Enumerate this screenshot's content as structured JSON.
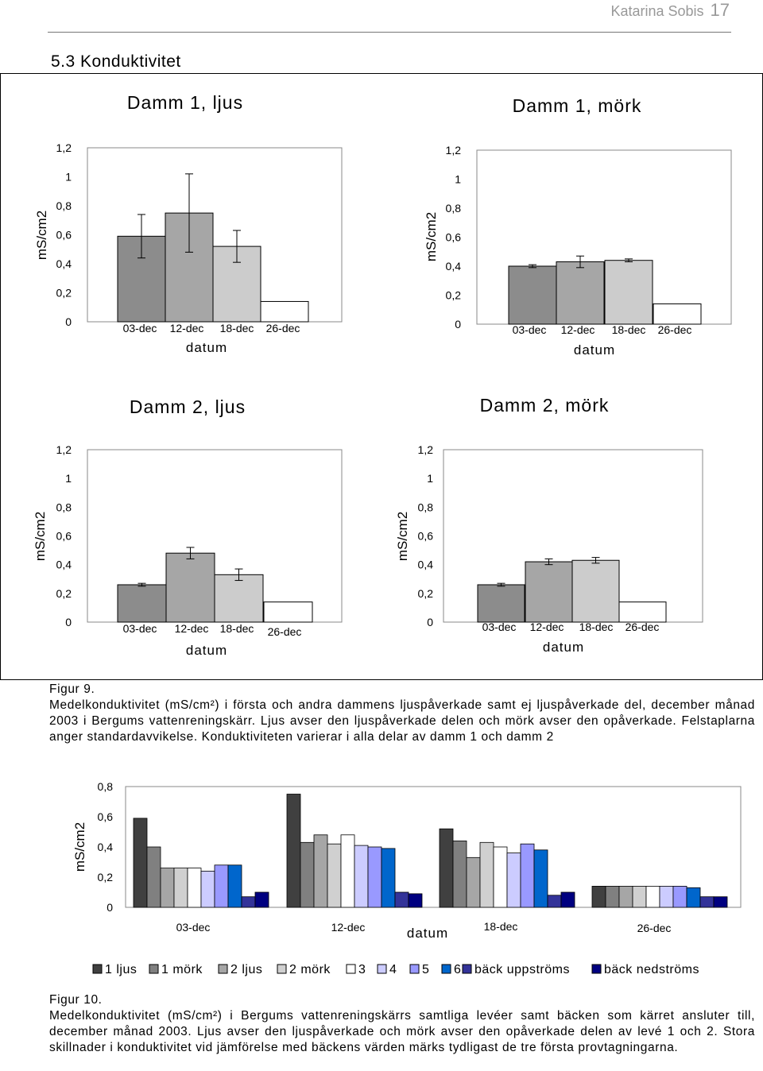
{
  "header": {
    "author": "Katarina Sobis",
    "page_number": "17"
  },
  "section_title": "5.3 Konduktivitet",
  "figure9": {
    "label": "Figur 9.",
    "caption": "Medelkonduktivitet (mS/cm²) i första och andra dammens ljuspåverkade samt ej ljuspåverkade del, december månad 2003 i Bergums vattenreningskärr. Ljus avser den ljuspåverkade delen och mörk avser den opåverkade. Felstaplarna anger standardavvikelse. Konduktiviteten varierar i alla delar av damm 1 och damm 2"
  },
  "figure10": {
    "label": "Figur 10.",
    "caption": "Medelkonduktivitet (mS/cm²) i Bergums vattenreningskärrs samtliga levéer samt bäcken som kärret ansluter till, december månad 2003. Ljus avser den ljuspåverkade och mörk avser den opåverkade delen av levé 1 och 2. Stora skillnader i konduktivitet vid jämförelse med bäckens värden märks tydligast de tre första provtagningarna."
  },
  "chart_data": [
    {
      "type": "bar",
      "title": "Damm 1, ljus",
      "xlabel": "datum",
      "ylabel": "mS/cm2",
      "ylim": [
        0,
        1.2
      ],
      "yticks": [
        "0",
        "0,2",
        "0,4",
        "0,6",
        "0,8",
        "1",
        "1,2"
      ],
      "categories": [
        "03-dec",
        "12-dec",
        "18-dec",
        "26-dec"
      ],
      "values": [
        0.59,
        0.75,
        0.52,
        0.14
      ],
      "errors": [
        0.15,
        0.27,
        0.11,
        0
      ],
      "colors": [
        "#8c8c8c",
        "#a6a6a6",
        "#cccccc",
        "#ffffff"
      ]
    },
    {
      "type": "bar",
      "title": "Damm 1, mörk",
      "xlabel": "datum",
      "ylabel": "mS/cm2",
      "ylim": [
        0,
        1.2
      ],
      "yticks": [
        "0",
        "0,2",
        "0,4",
        "0,6",
        "0,8",
        "1",
        "1,2"
      ],
      "categories": [
        "03-dec",
        "12-dec",
        "18-dec",
        "26-dec"
      ],
      "values": [
        0.4,
        0.43,
        0.44,
        0.14
      ],
      "errors": [
        0.01,
        0.04,
        0.01,
        0
      ],
      "colors": [
        "#8c8c8c",
        "#a6a6a6",
        "#cccccc",
        "#ffffff"
      ]
    },
    {
      "type": "bar",
      "title": "Damm 2, ljus",
      "xlabel": "datum",
      "ylabel": "mS/cm2",
      "ylim": [
        0,
        1.2
      ],
      "yticks": [
        "0",
        "0,2",
        "0,4",
        "0,6",
        "0,8",
        "1",
        "1,2"
      ],
      "categories": [
        "03-dec",
        "12-dec",
        "18-dec",
        "26-dec"
      ],
      "values": [
        0.26,
        0.48,
        0.33,
        0.14
      ],
      "errors": [
        0.01,
        0.04,
        0.04,
        0
      ],
      "colors": [
        "#8c8c8c",
        "#a6a6a6",
        "#cccccc",
        "#ffffff"
      ]
    },
    {
      "type": "bar",
      "title": "Damm 2, mörk",
      "xlabel": "datum",
      "ylabel": "mS/cm2",
      "ylim": [
        0,
        1.2
      ],
      "yticks": [
        "0",
        "0,2",
        "0,4",
        "0,6",
        "0,8",
        "1",
        "1,2"
      ],
      "categories": [
        "03-dec",
        "12-dec",
        "18-dec",
        "26-dec"
      ],
      "values": [
        0.26,
        0.42,
        0.43,
        0.14
      ],
      "errors": [
        0.01,
        0.02,
        0.02,
        0
      ],
      "colors": [
        "#8c8c8c",
        "#a6a6a6",
        "#cccccc",
        "#ffffff"
      ]
    },
    {
      "type": "bar",
      "title": "",
      "xlabel": "datum",
      "ylabel": "mS/cm2",
      "ylim": [
        0,
        0.8
      ],
      "yticks": [
        "0",
        "0,2",
        "0,4",
        "0,6",
        "0,8"
      ],
      "categories": [
        "03-dec",
        "12-dec",
        "18-dec",
        "26-dec"
      ],
      "series": [
        {
          "name": "1 ljus",
          "color": "#404040",
          "values": [
            0.59,
            0.75,
            0.52,
            0.14
          ]
        },
        {
          "name": "1 mörk",
          "color": "#808080",
          "values": [
            0.4,
            0.43,
            0.44,
            0.14
          ]
        },
        {
          "name": "2 ljus",
          "color": "#a6a6a6",
          "values": [
            0.26,
            0.48,
            0.33,
            0.14
          ]
        },
        {
          "name": "2 mörk",
          "color": "#d0d0d0",
          "values": [
            0.26,
            0.42,
            0.43,
            0.14
          ]
        },
        {
          "name": "3",
          "color": "#ffffff",
          "values": [
            0.26,
            0.48,
            0.4,
            0.14
          ]
        },
        {
          "name": "4",
          "color": "#ccccff",
          "values": [
            0.24,
            0.41,
            0.36,
            0.14
          ]
        },
        {
          "name": "5",
          "color": "#9999ff",
          "values": [
            0.28,
            0.4,
            0.42,
            0.14
          ]
        },
        {
          "name": "6",
          "color": "#0066cc",
          "values": [
            0.28,
            0.39,
            0.38,
            0.13
          ]
        },
        {
          "name": "bäck uppströms",
          "color": "#333399",
          "values": [
            0.07,
            0.1,
            0.08,
            0.07
          ]
        },
        {
          "name": "bäck nedströms",
          "color": "#000080",
          "values": [
            0.1,
            0.09,
            0.1,
            0.07
          ]
        }
      ]
    }
  ]
}
